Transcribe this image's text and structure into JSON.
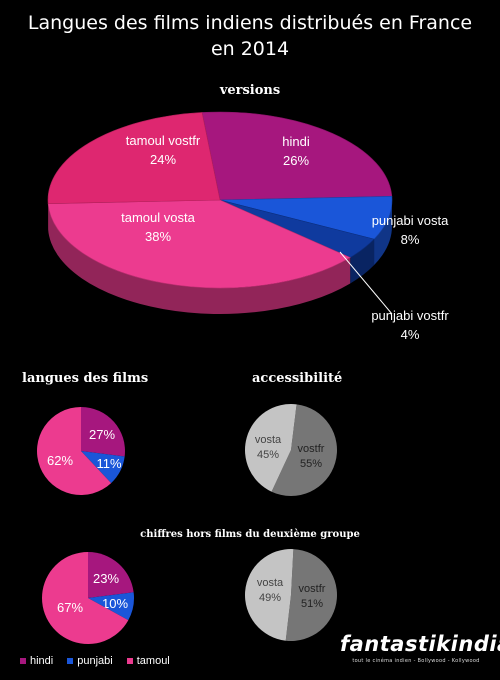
{
  "title_line1": "Langues des films indiens distribués en France",
  "title_line2": "en 2014",
  "logo": {
    "text": "fantastikindia",
    "tagline": "tout le cinéma indien - Bollywood - Kollywood"
  },
  "legend": [
    {
      "label": "hindi",
      "color": "#a6177e"
    },
    {
      "label": "punjabi",
      "color": "#1a56d9"
    },
    {
      "label": "tamoul",
      "color": "#ec3b8f"
    }
  ],
  "chart_data": [
    {
      "type": "pie",
      "title": "versions",
      "slices": [
        {
          "label": "hindi",
          "value": 26,
          "display": "26%",
          "color": "#a6177e"
        },
        {
          "label": "punjabi vosta",
          "value": 8,
          "display": "8%",
          "color": "#1a56d9"
        },
        {
          "label": "punjabi vostfr",
          "value": 4,
          "display": "4%",
          "color": "#0f3a9e"
        },
        {
          "label": "tamoul vosta",
          "value": 38,
          "display": "38%",
          "color": "#ec3b8f"
        },
        {
          "label": "tamoul vostfr",
          "value": 24,
          "display": "24%",
          "color": "#de2770"
        }
      ]
    },
    {
      "type": "pie",
      "title": "langues des films",
      "slices": [
        {
          "label": "hindi",
          "value": 27,
          "display": "27%",
          "color": "#a6177e"
        },
        {
          "label": "punjabi",
          "value": 11,
          "display": "11%",
          "color": "#1a56d9"
        },
        {
          "label": "tamoul",
          "value": 62,
          "display": "62%",
          "color": "#ec3b8f"
        }
      ]
    },
    {
      "type": "pie",
      "title": "accessibilité",
      "slices": [
        {
          "label": "vostfr",
          "value": 55,
          "display": "55%",
          "color": "#767676"
        },
        {
          "label": "vosta",
          "value": 45,
          "display": "45%",
          "color": "#c4c4c4"
        }
      ]
    },
    {
      "type": "pie",
      "title": "chiffres hors films du deuxième groupe",
      "slices": [
        {
          "label": "hindi",
          "value": 23,
          "display": "23%",
          "color": "#a6177e"
        },
        {
          "label": "punjabi",
          "value": 10,
          "display": "10%",
          "color": "#1a56d9"
        },
        {
          "label": "tamoul",
          "value": 67,
          "display": "67%",
          "color": "#ec3b8f"
        }
      ]
    },
    {
      "type": "pie",
      "title": "",
      "slices": [
        {
          "label": "vostfr",
          "value": 51,
          "display": "51%",
          "color": "#767676"
        },
        {
          "label": "vosta",
          "value": 49,
          "display": "49%",
          "color": "#c4c4c4"
        }
      ]
    }
  ]
}
